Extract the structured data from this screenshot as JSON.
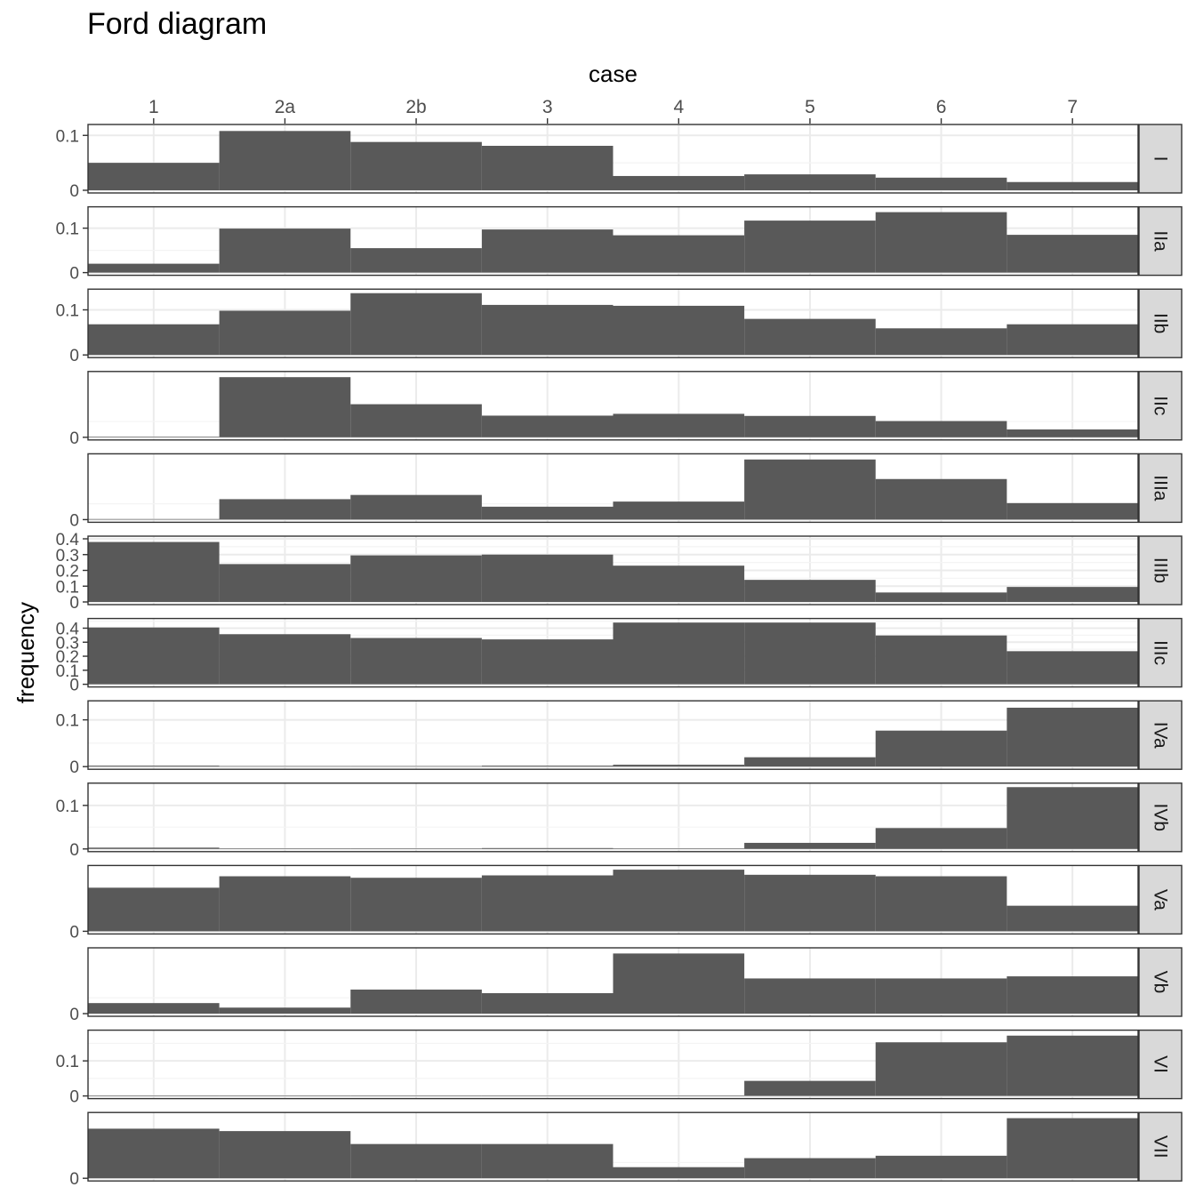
{
  "title": "Ford diagram",
  "chart_data": {
    "type": "bar",
    "title": "Ford diagram",
    "xlabel": "case",
    "ylabel": "frequency",
    "x_axis_position": "top",
    "grid": true,
    "theme": "bw",
    "bar_color": "#595959",
    "categories": [
      "1",
      "2a",
      "2b",
      "3",
      "4",
      "5",
      "6",
      "7"
    ],
    "panels": [
      {
        "label": "I",
        "ylim": [
          0,
          0.115
        ],
        "ticks": [
          {
            "v": 0,
            "t": "0"
          },
          {
            "v": 0.1,
            "t": "0.1"
          }
        ],
        "values": [
          0.05,
          0.108,
          0.088,
          0.081,
          0.026,
          0.029,
          0.023,
          0.015
        ]
      },
      {
        "label": "IIa",
        "ylim": [
          0,
          0.142
        ],
        "ticks": [
          {
            "v": 0,
            "t": "0"
          },
          {
            "v": 0.1,
            "t": "0.1"
          }
        ],
        "values": [
          0.02,
          0.099,
          0.055,
          0.097,
          0.084,
          0.117,
          0.136,
          0.085
        ]
      },
      {
        "label": "IIb",
        "ylim": [
          0,
          0.14
        ],
        "ticks": [
          {
            "v": 0,
            "t": "0"
          },
          {
            "v": 0.1,
            "t": "0.1"
          }
        ],
        "values": [
          0.068,
          0.098,
          0.137,
          0.111,
          0.109,
          0.08,
          0.059,
          0.068
        ]
      },
      {
        "label": "IIc",
        "ylim": [
          0,
          0.21
        ],
        "ticks": [
          {
            "v": 0,
            "t": "0"
          }
        ],
        "values": [
          0.0,
          0.2,
          0.11,
          0.072,
          0.078,
          0.071,
          0.054,
          0.026
        ]
      },
      {
        "label": "IIIa",
        "ylim": [
          0,
          0.21
        ],
        "ticks": [
          {
            "v": 0,
            "t": "0"
          }
        ],
        "values": [
          0.0,
          0.068,
          0.082,
          0.043,
          0.06,
          0.2,
          0.135,
          0.055
        ]
      },
      {
        "label": "IIIb",
        "ylim": [
          0,
          0.4
        ],
        "ticks": [
          {
            "v": 0,
            "t": "0"
          },
          {
            "v": 0.1,
            "t": "0.1"
          },
          {
            "v": 0.2,
            "t": "0.2"
          },
          {
            "v": 0.3,
            "t": "0.3"
          },
          {
            "v": 0.4,
            "t": "0.4"
          }
        ],
        "values": [
          0.38,
          0.24,
          0.295,
          0.3,
          0.23,
          0.14,
          0.06,
          0.095
        ]
      },
      {
        "label": "IIIc",
        "ylim": [
          0,
          0.45
        ],
        "ticks": [
          {
            "v": 0,
            "t": "0"
          },
          {
            "v": 0.1,
            "t": "0.1"
          },
          {
            "v": 0.2,
            "t": "0.2"
          },
          {
            "v": 0.3,
            "t": "0.3"
          },
          {
            "v": 0.4,
            "t": "0.4"
          }
        ],
        "values": [
          0.405,
          0.357,
          0.33,
          0.32,
          0.44,
          0.44,
          0.348,
          0.236
        ]
      },
      {
        "label": "IVa",
        "ylim": [
          0,
          0.135
        ],
        "ticks": [
          {
            "v": 0,
            "t": "0"
          },
          {
            "v": 0.1,
            "t": "0.1"
          }
        ],
        "values": [
          0.002,
          0.0,
          0.0,
          0.002,
          0.004,
          0.02,
          0.077,
          0.126
        ]
      },
      {
        "label": "IVb",
        "ylim": [
          0,
          0.145
        ],
        "ticks": [
          {
            "v": 0,
            "t": "0"
          },
          {
            "v": 0.1,
            "t": "0.1"
          }
        ],
        "values": [
          0.003,
          0.0,
          0.0,
          0.002,
          0.0,
          0.014,
          0.048,
          0.142
        ]
      },
      {
        "label": "Va",
        "ylim": [
          0,
          0.21
        ],
        "ticks": [
          {
            "v": 0,
            "t": "0"
          }
        ],
        "values": [
          0.145,
          0.183,
          0.178,
          0.186,
          0.205,
          0.188,
          0.183,
          0.085
        ]
      },
      {
        "label": "Vb",
        "ylim": [
          0,
          0.21
        ],
        "ticks": [
          {
            "v": 0,
            "t": "0"
          }
        ],
        "values": [
          0.035,
          0.02,
          0.08,
          0.068,
          0.2,
          0.117,
          0.117,
          0.124
        ]
      },
      {
        "label": "VI",
        "ylim": [
          0,
          0.18
        ],
        "ticks": [
          {
            "v": 0,
            "t": "0"
          },
          {
            "v": 0.1,
            "t": "0.1"
          }
        ],
        "values": [
          0.0,
          0.0,
          0.0,
          0.0,
          0.0,
          0.043,
          0.153,
          0.172
        ]
      },
      {
        "label": "VII",
        "ylim": [
          0,
          0.21
        ],
        "ticks": [
          {
            "v": 0,
            "t": "0"
          }
        ],
        "values": [
          0.165,
          0.157,
          0.114,
          0.114,
          0.037,
          0.067,
          0.075,
          0.2
        ]
      }
    ]
  }
}
